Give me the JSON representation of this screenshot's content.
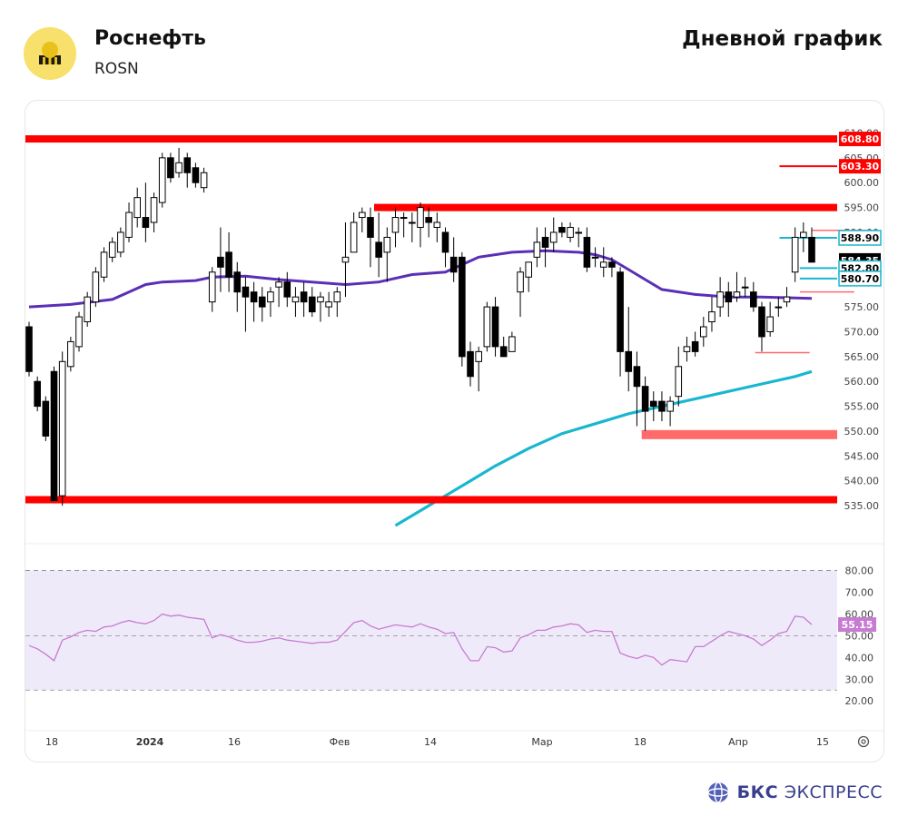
{
  "header": {
    "company": "Роснефть",
    "ticker": "ROSN",
    "chart_kind": "Дневной график",
    "logo_icon": "rosneft-logo-icon"
  },
  "brand": {
    "name_bold": "БКС",
    "name_rest": "ЭКСПРЕСС",
    "icon": "bks-globe-icon"
  },
  "colors": {
    "up_candle": "#ffffff",
    "down_candle": "#000000",
    "level_red": "#ff0000",
    "level_light": "#ff6b6b",
    "ma_purple": "#5b2fb5",
    "ma_cyan": "#19b7cf",
    "rsi_line": "#c77bd2",
    "rsi_band": "#efeaf9"
  },
  "chart_data": {
    "type": "candlestick",
    "price_axis": {
      "ylim": [
        531,
        611
      ],
      "ticks": [
        "535.00",
        "540.00",
        "545.00",
        "550.00",
        "555.00",
        "560.00",
        "565.00",
        "570.00",
        "575.00",
        "580.00",
        "585.00",
        "590.00",
        "595.00",
        "600.00",
        "605.00",
        "610.00"
      ]
    },
    "x_axis_labels": [
      "18",
      "2024",
      "16",
      "Фев",
      "14",
      "Мар",
      "18",
      "Апр",
      "15"
    ],
    "candles": [
      [
        571,
        562,
        572,
        561
      ],
      [
        560,
        555,
        561,
        554
      ],
      [
        556,
        549,
        557,
        548
      ],
      [
        562,
        536,
        563,
        536
      ],
      [
        537,
        564,
        566,
        535
      ],
      [
        563,
        568,
        569,
        562
      ],
      [
        567,
        573,
        574,
        566
      ],
      [
        572,
        577,
        578,
        571
      ],
      [
        576,
        582,
        583,
        575
      ],
      [
        581,
        586,
        587,
        580
      ],
      [
        585,
        588,
        589,
        584
      ],
      [
        586,
        590,
        591,
        585
      ],
      [
        589,
        594,
        596,
        588
      ],
      [
        593,
        597,
        599,
        591
      ],
      [
        593,
        591,
        600,
        588
      ],
      [
        592,
        597,
        598,
        590
      ],
      [
        596,
        605,
        606,
        595
      ],
      [
        605,
        601,
        606,
        600
      ],
      [
        602,
        604,
        607,
        601
      ],
      [
        605,
        602,
        606,
        599
      ],
      [
        603,
        600,
        604,
        599
      ],
      [
        599,
        602,
        603,
        598
      ],
      [
        576,
        582,
        583,
        574
      ],
      [
        585,
        583,
        591,
        578
      ],
      [
        586,
        581,
        590,
        578
      ],
      [
        582,
        578,
        584,
        574
      ],
      [
        579,
        577,
        581,
        570
      ],
      [
        578,
        576,
        580,
        572
      ],
      [
        577,
        575,
        579,
        572
      ],
      [
        576,
        578,
        579,
        573
      ],
      [
        579,
        580,
        581,
        575
      ],
      [
        580,
        577,
        582,
        575
      ],
      [
        576,
        577,
        579,
        573
      ],
      [
        578,
        576,
        580,
        573
      ],
      [
        577,
        574,
        579,
        573
      ],
      [
        576,
        577,
        578,
        572
      ],
      [
        575,
        576,
        578,
        573
      ],
      [
        576,
        578,
        579,
        573
      ],
      [
        584,
        585,
        592,
        577
      ],
      [
        586,
        592,
        594,
        586
      ],
      [
        593,
        594,
        595,
        590
      ],
      [
        593,
        589,
        595,
        583
      ],
      [
        588,
        585,
        594,
        581
      ],
      [
        586,
        589,
        591,
        580
      ],
      [
        590,
        593,
        595,
        587
      ],
      [
        593,
        593,
        594,
        589
      ],
      [
        592,
        592,
        594,
        588
      ],
      [
        591,
        595,
        596,
        587
      ],
      [
        593,
        592,
        595,
        589
      ],
      [
        591,
        592,
        594,
        588
      ],
      [
        590,
        586,
        591,
        583
      ],
      [
        585,
        582,
        589,
        580
      ],
      [
        585,
        565,
        586,
        563
      ],
      [
        566,
        561,
        568,
        559
      ],
      [
        564,
        566,
        567,
        558
      ],
      [
        567,
        575,
        576,
        566
      ],
      [
        575,
        567,
        577,
        565
      ],
      [
        567,
        565,
        569,
        566
      ],
      [
        566,
        569,
        570,
        566
      ],
      [
        578,
        582,
        583,
        573
      ],
      [
        581,
        584,
        584,
        578
      ],
      [
        585,
        588,
        591,
        583
      ],
      [
        589,
        587,
        591,
        583
      ],
      [
        588,
        590,
        593,
        586
      ],
      [
        591,
        590,
        592,
        589
      ],
      [
        589,
        591,
        592,
        588
      ],
      [
        590,
        590,
        591,
        587
      ],
      [
        589,
        583,
        591,
        582
      ],
      [
        585,
        585,
        587,
        583
      ],
      [
        583,
        584,
        587,
        581
      ],
      [
        584,
        583,
        585,
        581
      ],
      [
        582,
        566,
        583,
        561
      ],
      [
        566,
        562,
        575,
        558
      ],
      [
        563,
        559,
        566,
        551
      ],
      [
        559,
        554,
        561,
        550
      ],
      [
        556,
        555,
        558,
        552
      ],
      [
        556,
        554,
        558,
        552
      ],
      [
        554,
        556,
        557,
        551
      ],
      [
        557,
        563,
        567,
        555
      ],
      [
        566,
        567,
        569,
        564
      ],
      [
        568,
        566,
        570,
        565
      ],
      [
        569,
        571,
        573,
        567
      ],
      [
        572,
        574,
        577,
        570
      ],
      [
        575,
        578,
        581,
        573
      ],
      [
        578,
        576,
        580,
        573
      ],
      [
        577,
        578,
        582,
        576
      ],
      [
        579,
        579,
        581,
        577
      ],
      [
        578,
        575,
        580,
        574
      ],
      [
        575,
        569,
        576,
        566
      ],
      [
        570,
        573,
        576,
        569
      ],
      [
        575,
        575,
        577,
        573
      ],
      [
        576,
        577,
        579,
        575
      ],
      [
        582,
        589,
        591,
        580
      ],
      [
        589,
        590,
        592,
        586
      ],
      [
        589,
        584,
        591,
        584
      ]
    ],
    "candle_x_range": [
      31,
      893
    ],
    "horizontal_levels": [
      {
        "price": 608.8,
        "label": "608.80",
        "style": "thick-red",
        "from": 0.0
      },
      {
        "price": 603.3,
        "label": "603.30",
        "style": "thin-red",
        "from": 0.93
      },
      {
        "price": 595.0,
        "label": "",
        "style": "thick-red",
        "from": 0.43
      },
      {
        "price": 590.4,
        "label": "",
        "style": "thin-pink",
        "from": 0.97
      },
      {
        "price": 588.9,
        "label": "588.90",
        "style": "thin-cyan",
        "from": 0.93
      },
      {
        "price": 584.35,
        "label": "584.35",
        "style": "current",
        "from": 1.0
      },
      {
        "price": 582.8,
        "label": "582.80",
        "style": "thin-cyan",
        "from": 0.955
      },
      {
        "price": 580.7,
        "label": "580.70",
        "style": "thin-cyan",
        "from": 0.955
      },
      {
        "price": 578.0,
        "label": "",
        "style": "thin-pink",
        "from": 0.955
      },
      {
        "price": 565.8,
        "label": "",
        "style": "thin-pink",
        "from": 0.9
      },
      {
        "price": 549.3,
        "label": "",
        "style": "band-pink",
        "from": 0.76
      },
      {
        "price": 536.2,
        "label": "",
        "style": "thick-red",
        "from": 0.0
      }
    ],
    "ma_purple": [
      [
        0,
        575.0
      ],
      [
        5,
        575.5
      ],
      [
        10,
        576.5
      ],
      [
        12,
        578.0
      ],
      [
        14,
        579.5
      ],
      [
        16,
        580.0
      ],
      [
        20,
        580.3
      ],
      [
        22,
        581.0
      ],
      [
        26,
        581.2
      ],
      [
        30,
        580.5
      ],
      [
        34,
        580.0
      ],
      [
        38,
        579.5
      ],
      [
        42,
        580.0
      ],
      [
        46,
        581.5
      ],
      [
        50,
        582.0
      ],
      [
        54,
        585.0
      ],
      [
        58,
        586.0
      ],
      [
        62,
        586.3
      ],
      [
        66,
        586.0
      ],
      [
        68,
        585.5
      ],
      [
        70,
        584.5
      ],
      [
        72,
        582.5
      ],
      [
        74,
        580.5
      ],
      [
        76,
        578.5
      ],
      [
        80,
        577.5
      ],
      [
        84,
        577.0
      ],
      [
        88,
        577.0
      ],
      [
        92,
        576.8
      ],
      [
        94,
        576.7
      ]
    ],
    "ma_cyan": [
      [
        44,
        531.0
      ],
      [
        48,
        535.0
      ],
      [
        52,
        539.0
      ],
      [
        56,
        543.0
      ],
      [
        60,
        546.5
      ],
      [
        64,
        549.5
      ],
      [
        68,
        551.5
      ],
      [
        72,
        553.5
      ],
      [
        76,
        555.0
      ],
      [
        80,
        556.5
      ],
      [
        84,
        558.0
      ],
      [
        88,
        559.5
      ],
      [
        92,
        561.0
      ],
      [
        94,
        562.0
      ]
    ],
    "rsi": {
      "ylim": [
        18,
        84
      ],
      "ticks": [
        "20.00",
        "30.00",
        "40.00",
        "50.00",
        "60.00",
        "70.00",
        "80.00"
      ],
      "bands": [
        80,
        50,
        25
      ],
      "current": "55.15",
      "values": [
        45.5,
        44.0,
        41.5,
        38.5,
        48.0,
        49.5,
        51.5,
        52.5,
        52.0,
        54.0,
        54.5,
        56.0,
        57.0,
        56.0,
        55.5,
        57.0,
        60.0,
        59.0,
        59.5,
        58.5,
        58.0,
        57.5,
        49.0,
        50.5,
        49.5,
        48.0,
        47.0,
        47.0,
        47.5,
        48.5,
        49.0,
        48.0,
        47.5,
        47.0,
        46.5,
        47.0,
        47.0,
        48.0,
        52.0,
        56.0,
        57.0,
        54.5,
        53.0,
        54.0,
        55.0,
        54.5,
        54.0,
        55.5,
        54.0,
        53.0,
        51.0,
        51.5,
        44.0,
        38.5,
        38.5,
        45.0,
        44.5,
        42.5,
        43.0,
        49.0,
        50.5,
        52.5,
        52.5,
        54.0,
        54.5,
        55.5,
        55.0,
        51.5,
        52.5,
        52.0,
        52.0,
        42.0,
        40.5,
        39.5,
        41.0,
        40.0,
        36.5,
        39.0,
        38.5,
        38.0,
        45.0,
        45.0,
        47.5,
        50.0,
        52.0,
        51.0,
        50.0,
        48.5,
        45.5,
        48.0,
        51.0,
        52.0,
        59.0,
        58.5,
        55.15
      ]
    }
  }
}
